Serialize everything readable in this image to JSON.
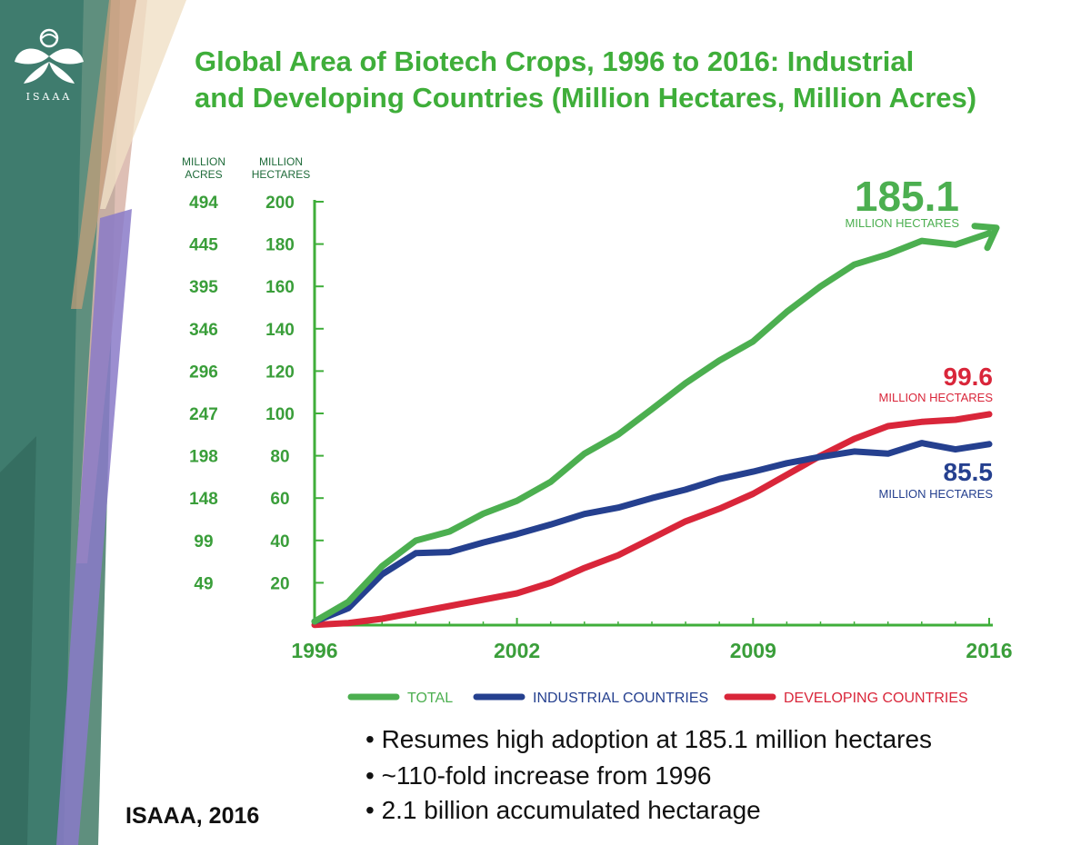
{
  "slide": {
    "title_line1": "Global Area of Biotech Crops, 1996 to 2016: Industrial",
    "title_line2": "and Developing Countries (Million Hectares, Million Acres)",
    "logo_text": "ISAAA",
    "bullets": [
      "• Resumes high adoption at 185.1 million hectares",
      "• ~110-fold increase from 1996",
      "• 2.1 billion accumulated hectarage"
    ],
    "source": "ISAAA, 2016"
  },
  "chart_data": {
    "type": "line",
    "axis_headers": {
      "acres": "MILLION\nACRES",
      "hectares": "MILLION\nHECTARES"
    },
    "y_ticks": [
      20,
      40,
      60,
      80,
      100,
      120,
      140,
      160,
      180,
      200
    ],
    "y_acres_ticks": [
      "49",
      "99",
      "148",
      "198",
      "247",
      "296",
      "346",
      "395",
      "445",
      "494"
    ],
    "x_tick_labels": [
      {
        "year": 1996,
        "label": "1996"
      },
      {
        "year": 2002,
        "label": "2002"
      },
      {
        "year": 2009,
        "label": "2009"
      },
      {
        "year": 2016,
        "label": "2016"
      }
    ],
    "xlim": [
      1996,
      2016
    ],
    "ylim": [
      0,
      200
    ],
    "x": [
      1996,
      1997,
      1998,
      1999,
      2000,
      2001,
      2002,
      2003,
      2004,
      2005,
      2006,
      2007,
      2008,
      2009,
      2010,
      2011,
      2012,
      2013,
      2014,
      2015,
      2016
    ],
    "series": [
      {
        "key": "total",
        "name": "TOTAL",
        "color": "#4caf50",
        "values": [
          1.7,
          11,
          27.8,
          39.9,
          44.2,
          52.6,
          58.7,
          67.7,
          81,
          90,
          102,
          114.3,
          125,
          134,
          148,
          160,
          170.3,
          175.2,
          181.5,
          179.7,
          185.1
        ]
      },
      {
        "key": "industrial",
        "name": "INDUSTRIAL COUNTRIES",
        "color": "#25408f",
        "values": [
          1.7,
          8,
          24,
          34,
          34.5,
          39,
          43,
          47.5,
          52.5,
          55.5,
          60,
          64,
          69,
          72.5,
          76.5,
          79.5,
          82,
          81,
          86,
          83,
          85.5
        ]
      },
      {
        "key": "developing",
        "name": "DEVELOPING COUNTRIES",
        "color": "#d9263a",
        "values": [
          0.1,
          1,
          3,
          6,
          9,
          12,
          15,
          20,
          27,
          33,
          41,
          49,
          55,
          62,
          71,
          80,
          88,
          94,
          96,
          97,
          99.6
        ]
      }
    ],
    "annotations": [
      {
        "series": "total",
        "value": "185.1",
        "unit": "MILLION HECTARES",
        "color": "#4caf50"
      },
      {
        "series": "developing",
        "value": "99.6",
        "unit": "MILLION HECTARES",
        "color": "#d9263a"
      },
      {
        "series": "industrial",
        "value": "85.5",
        "unit": "MILLION HECTARES",
        "color": "#25408f"
      }
    ],
    "legend_position": "bottom",
    "grid": false
  },
  "colors": {
    "title": "#3fae3a",
    "axis": "#3fae3a",
    "tick_label": "#3a9e3a",
    "header_label": "#1f6b3a"
  }
}
